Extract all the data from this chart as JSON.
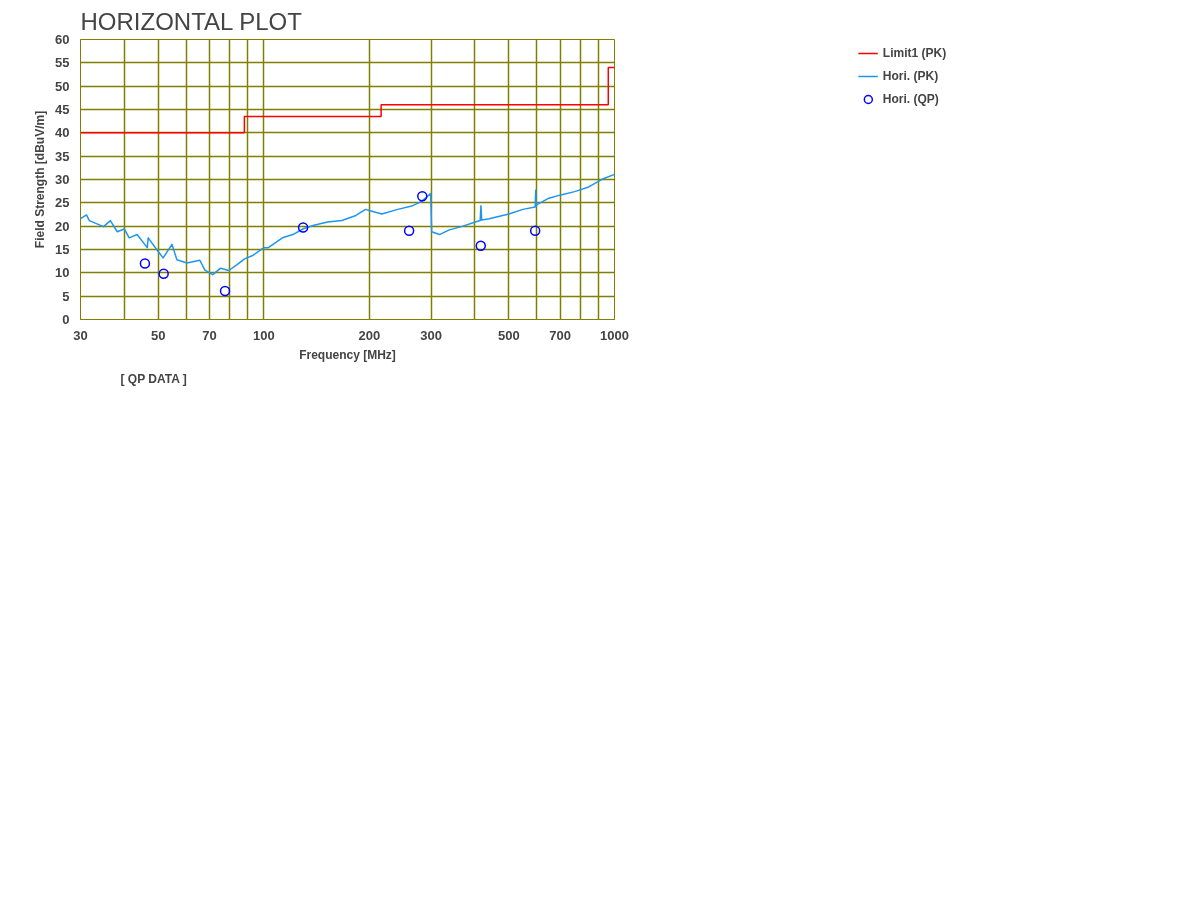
{
  "chart_data": {
    "type": "scatter",
    "title": "HORIZONTAL PLOT",
    "xlabel": "Frequency [MHz]",
    "ylabel": "Field Strength [dBuV/m]",
    "annotations": [
      "[ QP DATA ]"
    ],
    "log": "x",
    "grid": true,
    "legend": "top right",
    "xlim": [
      30,
      1000
    ],
    "ylim": [
      0,
      60
    ],
    "xticks": [
      30,
      {
        "value": 40,
        "label": null
      },
      50,
      {
        "value": 60,
        "label": null
      },
      70,
      {
        "value": 80,
        "label": null
      },
      {
        "value": 90,
        "label": null
      },
      100,
      200,
      300,
      {
        "value": 400,
        "label": null
      },
      500,
      {
        "value": 600,
        "label": null
      },
      700,
      {
        "value": 800,
        "label": null
      },
      {
        "value": 900,
        "label": null
      },
      1000
    ],
    "yticks": [
      0,
      5,
      10,
      15,
      20,
      25,
      30,
      35,
      40,
      45,
      50,
      55,
      60
    ],
    "series": [
      {
        "name": "Limit1 (PK)",
        "type": "step",
        "color": "#ff0000",
        "x": [
          30,
          88,
          216,
          960,
          1000
        ],
        "values": [
          40,
          43.5,
          46,
          54,
          54
        ]
      },
      {
        "name": "Hori. (PK)",
        "type": "line",
        "color": "#1e96f0",
        "x": [
          30,
          31.2,
          31.8,
          34.9,
          36.5,
          38.2,
          40.0,
          41.3,
          43.5,
          46.5,
          46.8,
          49.6,
          51.6,
          54.7,
          56.5,
          60.3,
          65.7,
          67.9,
          71.5,
          75.3,
          79.4,
          83.7,
          88.1,
          92.9,
          100,
          103,
          113,
          121,
          130,
          139,
          152,
          167,
          183,
          195,
          201,
          217,
          241,
          264,
          282,
          299,
          301,
          317,
          338,
          366,
          401,
          414,
          416,
          418,
          439,
          500,
          548,
          594,
          596,
          598,
          601,
          650,
          703,
          770,
          844,
          925,
          1000
        ],
        "values": [
          21.6,
          22.4,
          21.2,
          19.9,
          21.2,
          18.8,
          19.4,
          17.5,
          18.2,
          15.4,
          17.5,
          14.9,
          13.2,
          16.1,
          12.8,
          12.1,
          12.7,
          10.6,
          9.6,
          11.0,
          10.5,
          11.7,
          13.0,
          13.7,
          15.4,
          15.4,
          17.5,
          18.2,
          19.5,
          20.2,
          20.9,
          21.2,
          22.3,
          23.6,
          23.3,
          22.6,
          23.6,
          24.3,
          25.3,
          27.0,
          18.8,
          18.2,
          19.2,
          19.9,
          20.9,
          21.2,
          24.4,
          21.3,
          21.6,
          22.6,
          23.6,
          24.1,
          27.7,
          24.3,
          24.6,
          26.0,
          26.7,
          27.4,
          28.4,
          30.1,
          31.1
        ]
      },
      {
        "name": "Hori. (QP)",
        "marker": "circle",
        "color": "#0000ff",
        "x": [
          45.8,
          51.8,
          77.5,
          129.4,
          259.6,
          283,
          415.6,
          594
        ],
        "values": [
          12.0,
          9.8,
          6.1,
          19.7,
          19.0,
          26.4,
          15.8,
          19.0
        ]
      }
    ]
  }
}
